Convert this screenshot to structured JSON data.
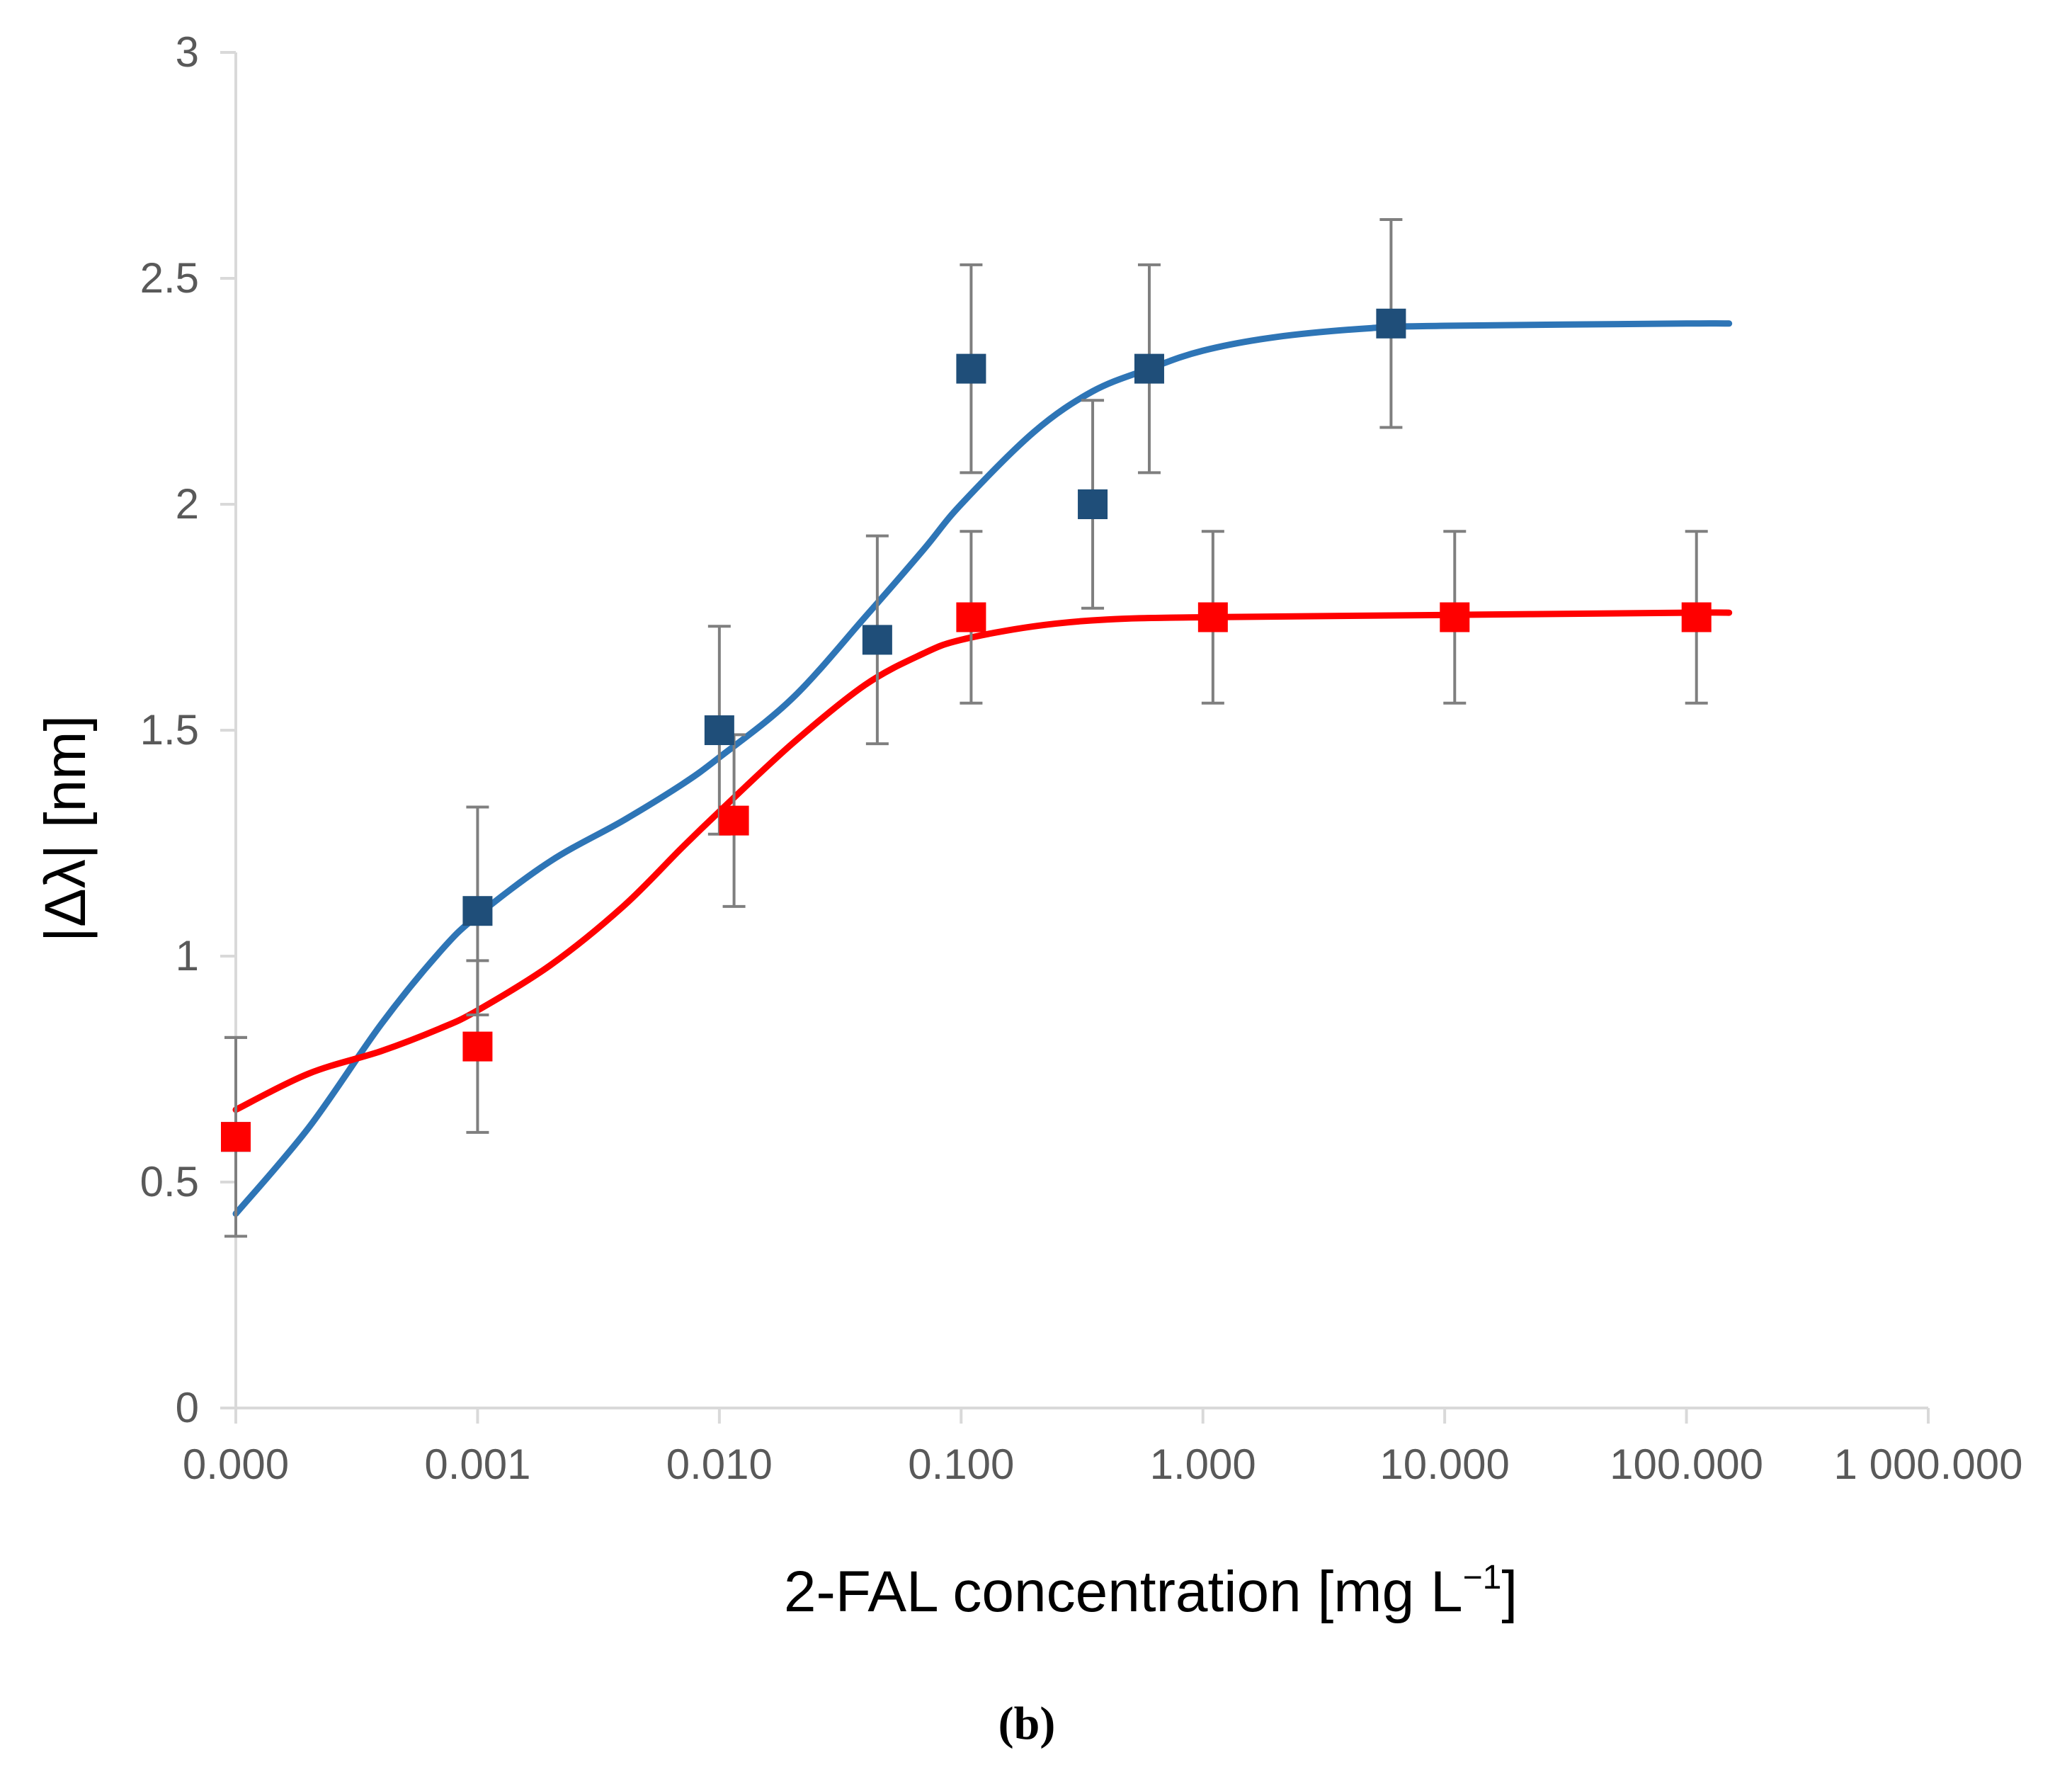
{
  "chart_data": {
    "type": "scatter",
    "title": "",
    "xlabel": "2-FAL concentration [mg L",
    "xlabel_superscript": "−1",
    "xlabel_suffix": "]",
    "ylabel": "|Δλ| [nm]",
    "caption": "(b)",
    "x_scale": "log",
    "x_ticks": [
      {
        "value": 0.0001,
        "label": "0.000"
      },
      {
        "value": 0.001,
        "label": "0.001"
      },
      {
        "value": 0.01,
        "label": "0.010"
      },
      {
        "value": 0.1,
        "label": "0.100"
      },
      {
        "value": 1,
        "label": "1.000"
      },
      {
        "value": 10,
        "label": "10.000"
      },
      {
        "value": 100,
        "label": "100.000"
      },
      {
        "value": 1000,
        "label": "1 000.000"
      }
    ],
    "y_ticks": [
      {
        "value": 0,
        "label": "0"
      },
      {
        "value": 0.5,
        "label": "0.5"
      },
      {
        "value": 1,
        "label": "1"
      },
      {
        "value": 1.5,
        "label": "1.5"
      },
      {
        "value": 2,
        "label": "2"
      },
      {
        "value": 2.5,
        "label": "2.5"
      },
      {
        "value": 3,
        "label": "3"
      }
    ],
    "xlim": [
      0.0001,
      1000
    ],
    "ylim": [
      0,
      3
    ],
    "series": [
      {
        "name": "blue",
        "color": "#1f4e79",
        "line_color": "#2e75b6",
        "points": [
          {
            "x": 0.0001,
            "y": 0.6,
            "err": 0.22
          },
          {
            "x": 0.001,
            "y": 1.1,
            "err": 0.23
          },
          {
            "x": 0.01,
            "y": 1.5,
            "err": 0.23
          },
          {
            "x": 0.045,
            "y": 1.7,
            "err": 0.23
          },
          {
            "x": 0.11,
            "y": 2.3,
            "err": 0.23
          },
          {
            "x": 0.35,
            "y": 2.0,
            "err": 0.23
          },
          {
            "x": 0.6,
            "y": 2.3,
            "err": 0.23
          },
          {
            "x": 6.0,
            "y": 2.4,
            "err": 0.23
          }
        ],
        "curve": [
          [
            0.0001,
            0.43
          ],
          [
            0.0002,
            0.62
          ],
          [
            0.0004,
            0.85
          ],
          [
            0.0007,
            1.01
          ],
          [
            0.001,
            1.09
          ],
          [
            0.002,
            1.21
          ],
          [
            0.004,
            1.3
          ],
          [
            0.007,
            1.38
          ],
          [
            0.01,
            1.44
          ],
          [
            0.02,
            1.57
          ],
          [
            0.04,
            1.75
          ],
          [
            0.07,
            1.9
          ],
          [
            0.1,
            2.0
          ],
          [
            0.2,
            2.16
          ],
          [
            0.35,
            2.25
          ],
          [
            0.6,
            2.3
          ],
          [
            1,
            2.34
          ],
          [
            2,
            2.37
          ],
          [
            5,
            2.39
          ],
          [
            10,
            2.395
          ],
          [
            100,
            2.4
          ],
          [
            150,
            2.4
          ]
        ]
      },
      {
        "name": "red",
        "color": "#ff0000",
        "line_color": "#ff0000",
        "points": [
          {
            "x": 0.0001,
            "y": 0.6,
            "err": 0.22
          },
          {
            "x": 0.001,
            "y": 0.8,
            "err": 0.19
          },
          {
            "x": 0.0115,
            "y": 1.3,
            "err": 0.19
          },
          {
            "x": 0.11,
            "y": 1.75,
            "err": 0.19
          },
          {
            "x": 1.1,
            "y": 1.75,
            "err": 0.19
          },
          {
            "x": 11,
            "y": 1.75,
            "err": 0.19
          },
          {
            "x": 110,
            "y": 1.75,
            "err": 0.19
          }
        ],
        "curve": [
          [
            0.0001,
            0.66
          ],
          [
            0.0002,
            0.74
          ],
          [
            0.0004,
            0.79
          ],
          [
            0.0007,
            0.84
          ],
          [
            0.001,
            0.88
          ],
          [
            0.002,
            0.98
          ],
          [
            0.004,
            1.11
          ],
          [
            0.007,
            1.24
          ],
          [
            0.01,
            1.32
          ],
          [
            0.02,
            1.47
          ],
          [
            0.04,
            1.6
          ],
          [
            0.07,
            1.67
          ],
          [
            0.1,
            1.7
          ],
          [
            0.2,
            1.73
          ],
          [
            0.4,
            1.745
          ],
          [
            1,
            1.75
          ],
          [
            10,
            1.755
          ],
          [
            100,
            1.76
          ],
          [
            150,
            1.76
          ]
        ]
      }
    ],
    "error_bar_color": "#7f7f7f",
    "axis_color": "#d9d9d9"
  }
}
